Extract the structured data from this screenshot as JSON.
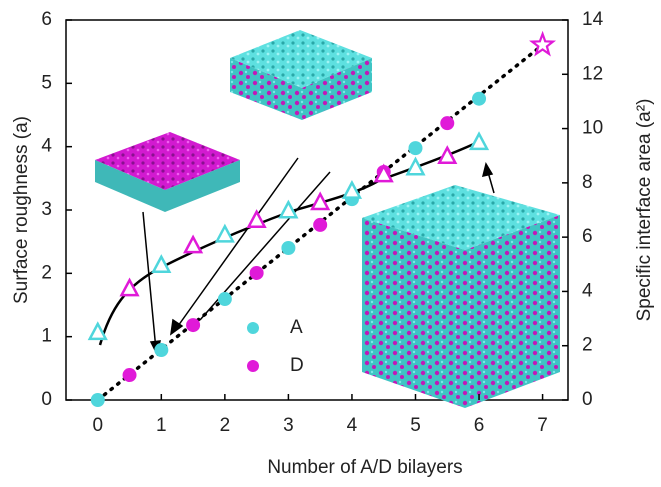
{
  "chart_data": {
    "type": "scatter",
    "xlabel": "Number of A/D bilayers",
    "ylabel": "Surface roughness (a)",
    "y2label": "Specific interface area (a²)",
    "xlim": [
      -0.5,
      7.4
    ],
    "xticks": [
      0,
      1,
      2,
      3,
      4,
      5,
      6,
      7
    ],
    "ylim": [
      0,
      6
    ],
    "yticks": [
      0,
      1,
      2,
      3,
      4,
      5,
      6
    ],
    "y2lim": [
      0,
      14
    ],
    "y2ticks": [
      0,
      2,
      4,
      6,
      8,
      10,
      12,
      14
    ],
    "series": [
      {
        "name": "A",
        "color": "#4fd6dc",
        "marker": "circle",
        "axis": "y2",
        "x": [
          0,
          1,
          2,
          3,
          4,
          5,
          6
        ],
        "values": [
          0,
          1.84,
          3.72,
          5.6,
          7.4,
          9.28,
          11.1
        ]
      },
      {
        "name": "D",
        "color": "#e01ad8",
        "marker": "circle",
        "axis": "y2",
        "x": [
          0.5,
          1.5,
          2.5,
          3.5,
          4.5,
          5.5
        ],
        "values": [
          0.92,
          2.76,
          4.68,
          6.45,
          8.4,
          10.2
        ]
      },
      {
        "color": "#4fd6dc",
        "marker": "triangle",
        "x": [
          0,
          1,
          2,
          3,
          4,
          5,
          6
        ],
        "values": [
          1.06,
          2.12,
          2.6,
          2.98,
          3.29,
          3.66,
          4.06
        ]
      },
      {
        "color": "#e01ad8",
        "marker": "triangle",
        "x": [
          0.5,
          1.5,
          2.5,
          3.5,
          4.5,
          5.5
        ],
        "values": [
          1.75,
          2.43,
          2.83,
          3.11,
          3.55,
          3.84
        ]
      },
      {
        "color": "#e01ad8",
        "marker": "star",
        "axis": "y2",
        "x": [
          7
        ],
        "values": [
          13.08
        ]
      }
    ]
  }
}
